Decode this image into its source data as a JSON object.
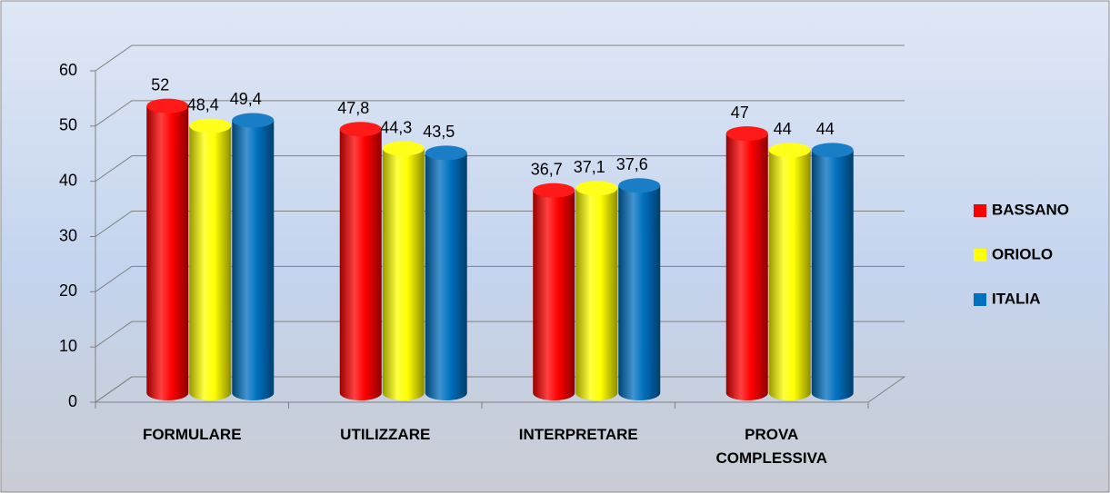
{
  "chart_data": {
    "type": "bar3d",
    "categories": [
      "FORMULARE",
      "UTILIZZARE",
      "INTERPRETARE",
      "PROVA COMPLESSIVA"
    ],
    "series": [
      {
        "name": "BASSANO",
        "color": "#ff0000",
        "values": [
          52,
          47.8,
          36.7,
          47
        ],
        "value_labels": [
          "52",
          "47,8",
          "36,7",
          "47"
        ]
      },
      {
        "name": "ORIOLO",
        "color": "#ffff00",
        "values": [
          48.4,
          44.3,
          37.1,
          44
        ],
        "value_labels": [
          "48,4",
          "44,3",
          "37,1",
          "44"
        ]
      },
      {
        "name": "ITALIA",
        "color": "#0070c0",
        "values": [
          49.4,
          43.5,
          37.6,
          44
        ],
        "value_labels": [
          "49,4",
          "43,5",
          "37,6",
          "44"
        ]
      }
    ],
    "ylim": [
      0,
      60
    ],
    "yticks": [
      0,
      10,
      20,
      30,
      40,
      50,
      60
    ],
    "grid": true,
    "legend": "right"
  }
}
